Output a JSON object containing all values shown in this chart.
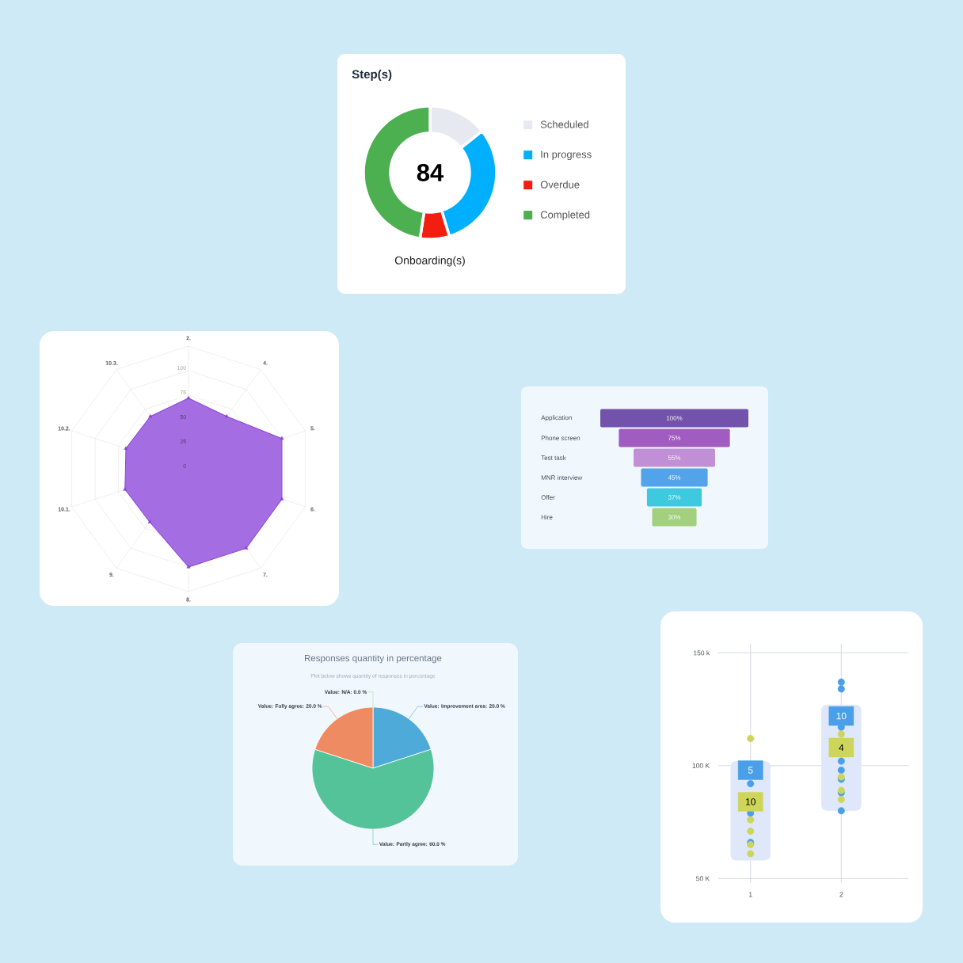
{
  "chart_data": [
    {
      "type": "donut",
      "title": "Step(s)",
      "categories": [
        "Scheduled",
        "In progress",
        "Overdue",
        "Completed"
      ],
      "values": [
        14.3,
        31.0,
        7.1,
        47.6
      ],
      "colors": [
        "#e6e9ef",
        "#00b0ff",
        "#f21e10",
        "#4caf50"
      ],
      "legend": "right",
      "annotations": [
        "84",
        "Onboarding(s)"
      ]
    },
    {
      "type": "radar",
      "categories": [
        "2.",
        "4.",
        "5.",
        "6.",
        "7.",
        "8.",
        "9.",
        "10.1.",
        "10.2.",
        "10.3."
      ],
      "series": [
        {
          "color": "#8a45da",
          "values": [
            72,
            66,
            100,
            100,
            100,
            100,
            67,
            68,
            67,
            66
          ],
          "marker": "triangle"
        }
      ],
      "ylim": [
        0,
        125
      ],
      "yticks": [
        0,
        25,
        50,
        75,
        100
      ],
      "grid": true
    },
    {
      "type": "other",
      "categories": [
        "Application",
        "Phone screen",
        "Test task",
        "MNR interview",
        "Offer",
        "Hire"
      ],
      "values": [
        100,
        75,
        55,
        45,
        37,
        30
      ],
      "value_labels": [
        "100%",
        "75%",
        "55%",
        "45%",
        "37%",
        "30%"
      ]
    },
    {
      "type": "pie",
      "title": "Responses quantity in percentage",
      "subtitle": "Plot below shows quantity of responses in percentage",
      "categories": [
        "Value: Improvement area: 20.0 %",
        "Value: Partly agree: 60.0 %",
        "Value: Fully agree: 20.0 %",
        "Value: N/A: 0.0 %"
      ],
      "values": [
        20,
        60,
        20,
        0
      ],
      "colors": [
        "#4eaad8",
        "#55c39a",
        "#ef8b62",
        "#a8dca0"
      ]
    },
    {
      "type": "scatter",
      "categories": [
        "1",
        "2"
      ],
      "ylim": [
        48,
        154
      ],
      "yticks": [
        {
          "value": 150,
          "label": "150 k"
        },
        {
          "value": 100,
          "label": "100 K"
        },
        {
          "value": 50,
          "label": "50 K"
        }
      ],
      "grid": true,
      "marker": "circle",
      "series": [
        {
          "type": "bar",
          "color": "#dfe8fb",
          "base": [
            58,
            80
          ],
          "values": [
            44,
            47
          ]
        },
        {
          "color": "#4a9fe8",
          "x": [
            "1",
            "1",
            "1",
            "2",
            "2",
            "2",
            "2",
            "2",
            "2",
            "2",
            "2"
          ],
          "values": [
            92,
            79,
            66,
            137,
            134,
            117,
            102,
            98,
            94,
            88,
            80
          ]
        },
        {
          "color": "#cdd55b",
          "x": [
            "1",
            "1",
            "1",
            "1",
            "1",
            "2",
            "2",
            "2",
            "2"
          ],
          "values": [
            112,
            76,
            71,
            65,
            61,
            114,
            95,
            89,
            85
          ]
        },
        {
          "color": "#4a9fe8",
          "x": [
            "1",
            "2"
          ],
          "values": [
            98,
            122
          ],
          "marker": "square"
        },
        {
          "color": "#cdd55b",
          "x": [
            "1",
            "2"
          ],
          "values": [
            84,
            108
          ],
          "marker": "square"
        }
      ],
      "annotations": [
        {
          "text": "5",
          "x": "1",
          "y": 98
        },
        {
          "text": "10",
          "x": "2",
          "y": 122
        },
        {
          "text": "10",
          "x": "1",
          "y": 84
        },
        {
          "text": "4",
          "x": "2",
          "y": 108
        }
      ]
    }
  ]
}
